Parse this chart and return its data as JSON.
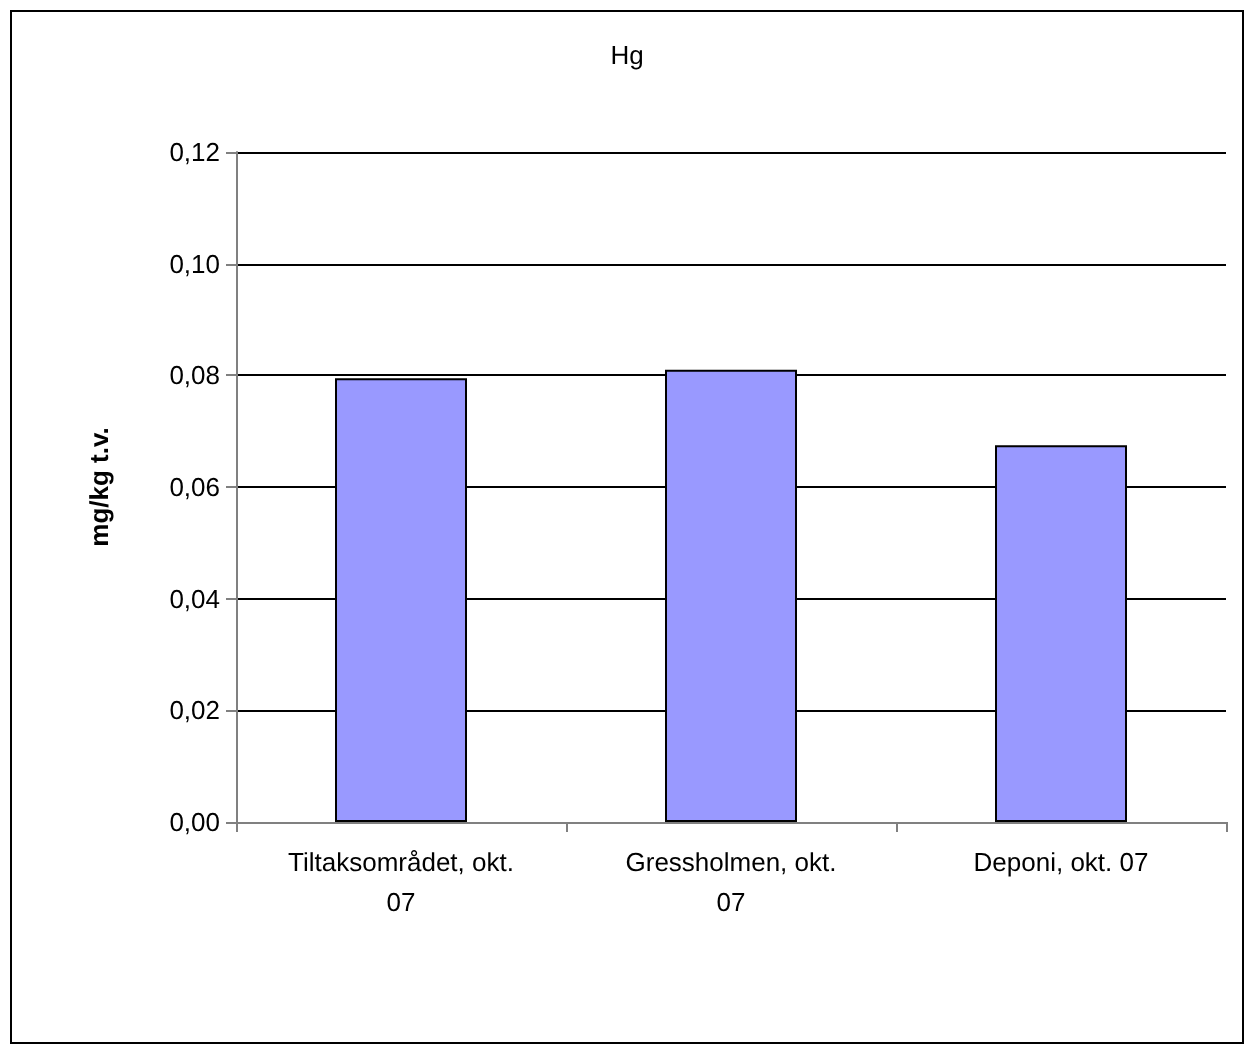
{
  "chart_data": {
    "type": "bar",
    "title": "Hg",
    "ylabel": "mg/kg t.v.",
    "categories": [
      "Tiltaksområdet, okt. 07",
      "Gressholmen, okt. 07",
      "Deponi, okt. 07"
    ],
    "values": [
      0.0795,
      0.081,
      0.0675
    ],
    "color": "#9999ff",
    "ylim": [
      0,
      0.12
    ],
    "yticks": [
      {
        "value": 0,
        "label": "0,00"
      },
      {
        "value": 0.02,
        "label": "0,02"
      },
      {
        "value": 0.04,
        "label": "0,04"
      },
      {
        "value": 0.06,
        "label": "0,06"
      },
      {
        "value": 0.08,
        "label": "0,08"
      },
      {
        "value": 0.1,
        "label": "0,10"
      },
      {
        "value": 0.12,
        "label": "0,12"
      }
    ],
    "grid": "y"
  }
}
